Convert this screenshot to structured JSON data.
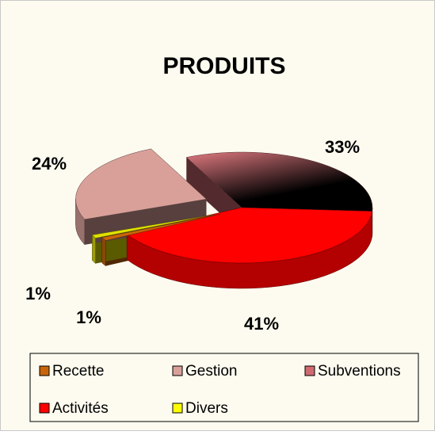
{
  "chart_data": {
    "type": "pie",
    "title": "PRODUITS",
    "categories": [
      "Recette",
      "Gestion",
      "Subventions",
      "Activités",
      "Divers"
    ],
    "values": [
      1,
      24,
      33,
      41,
      1
    ],
    "value_labels": [
      "1%",
      "24%",
      "33%",
      "41%",
      "1%"
    ],
    "colors": [
      "#c8650a",
      "#d9a09a",
      "#d06a70",
      "#ff0000",
      "#e0e000"
    ],
    "legend": "bottom"
  }
}
